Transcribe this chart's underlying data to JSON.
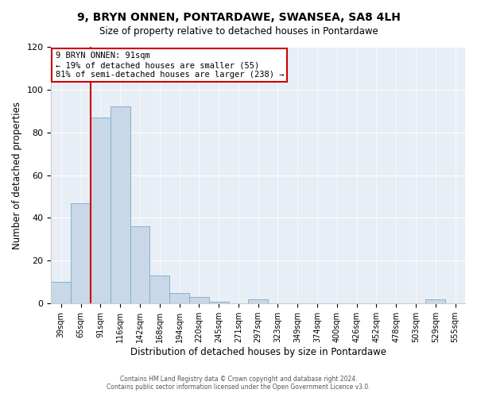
{
  "title": "9, BRYN ONNEN, PONTARDAWE, SWANSEA, SA8 4LH",
  "subtitle": "Size of property relative to detached houses in Pontardawe",
  "xlabel": "Distribution of detached houses by size in Pontardawe",
  "ylabel": "Number of detached properties",
  "bar_labels": [
    "39sqm",
    "65sqm",
    "91sqm",
    "116sqm",
    "142sqm",
    "168sqm",
    "194sqm",
    "220sqm",
    "245sqm",
    "271sqm",
    "297sqm",
    "323sqm",
    "349sqm",
    "374sqm",
    "400sqm",
    "426sqm",
    "452sqm",
    "478sqm",
    "503sqm",
    "529sqm",
    "555sqm"
  ],
  "bar_values": [
    10,
    47,
    87,
    92,
    36,
    13,
    5,
    3,
    1,
    0,
    2,
    0,
    0,
    0,
    0,
    0,
    0,
    0,
    0,
    2,
    0
  ],
  "bar_color": "#c8d8e8",
  "bar_edgecolor": "#7aaac8",
  "vline_color": "#cc0000",
  "vline_x": 1.5,
  "annotation_title": "9 BRYN ONNEN: 91sqm",
  "annotation_line1": "← 19% of detached houses are smaller (55)",
  "annotation_line2": "81% of semi-detached houses are larger (238) →",
  "annotation_box_edgecolor": "#cc0000",
  "ylim": [
    0,
    120
  ],
  "yticks": [
    0,
    20,
    40,
    60,
    80,
    100,
    120
  ],
  "footer1": "Contains HM Land Registry data © Crown copyright and database right 2024.",
  "footer2": "Contains public sector information licensed under the Open Government Licence v3.0.",
  "bg_color": "#ffffff",
  "plot_bg_color": "#e8eef5"
}
